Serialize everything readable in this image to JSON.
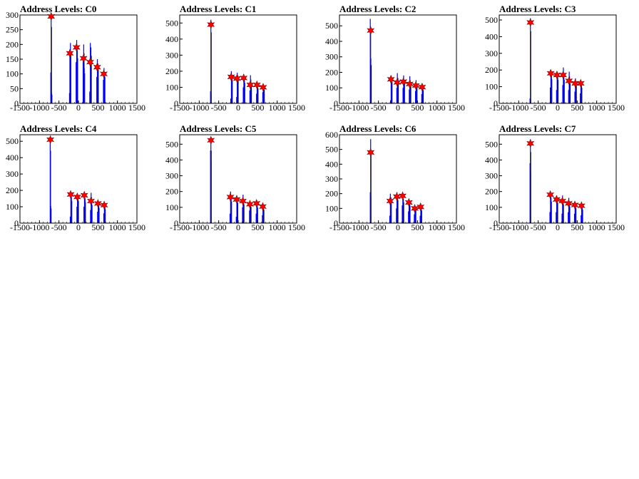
{
  "chart_data": [
    {
      "type": "bar",
      "title": "Address Levels: C0",
      "xlim": [
        -1500,
        1500
      ],
      "ylim": [
        0,
        300
      ],
      "xticks": [
        -1500,
        -1000,
        -500,
        0,
        500,
        1000,
        1500
      ],
      "yticks": [
        0,
        50,
        100,
        150,
        200,
        250,
        300
      ],
      "peaks": [
        {
          "x": -700,
          "y": 295
        },
        {
          "x": -220,
          "y": 170
        },
        {
          "x": -50,
          "y": 190
        },
        {
          "x": 130,
          "y": 153
        },
        {
          "x": 300,
          "y": 140
        },
        {
          "x": 480,
          "y": 123
        },
        {
          "x": 650,
          "y": 100
        }
      ],
      "spikes": [
        {
          "x": -710,
          "y": 105
        },
        {
          "x": -700,
          "y": 305
        },
        {
          "x": -690,
          "y": 35
        },
        {
          "x": -230,
          "y": 35
        },
        {
          "x": -220,
          "y": 165
        },
        {
          "x": -205,
          "y": 205
        },
        {
          "x": -60,
          "y": 140
        },
        {
          "x": -45,
          "y": 215
        },
        {
          "x": -30,
          "y": 180
        },
        {
          "x": 120,
          "y": 145
        },
        {
          "x": 135,
          "y": 200
        },
        {
          "x": 150,
          "y": 120
        },
        {
          "x": 290,
          "y": 40
        },
        {
          "x": 305,
          "y": 205
        },
        {
          "x": 320,
          "y": 190
        },
        {
          "x": 470,
          "y": 90
        },
        {
          "x": 485,
          "y": 150
        },
        {
          "x": 500,
          "y": 135
        },
        {
          "x": 640,
          "y": 80
        },
        {
          "x": 655,
          "y": 120
        },
        {
          "x": 670,
          "y": 105
        }
      ]
    },
    {
      "type": "bar",
      "title": "Address Levels: C1",
      "xlim": [
        -1500,
        1500
      ],
      "ylim": [
        0,
        550
      ],
      "xticks": [
        -1500,
        -1000,
        -500,
        0,
        500,
        1000,
        1500
      ],
      "yticks": [
        0,
        100,
        200,
        300,
        400,
        500
      ],
      "peaks": [
        {
          "x": -700,
          "y": 490
        },
        {
          "x": -180,
          "y": 165
        },
        {
          "x": -30,
          "y": 155
        },
        {
          "x": 140,
          "y": 158
        },
        {
          "x": 310,
          "y": 115
        },
        {
          "x": 480,
          "y": 115
        },
        {
          "x": 640,
          "y": 100
        }
      ],
      "spikes": [
        {
          "x": -710,
          "y": 75
        },
        {
          "x": -700,
          "y": 520
        },
        {
          "x": -190,
          "y": 30
        },
        {
          "x": -175,
          "y": 200
        },
        {
          "x": -160,
          "y": 170
        },
        {
          "x": -40,
          "y": 40
        },
        {
          "x": -25,
          "y": 190
        },
        {
          "x": -10,
          "y": 175
        },
        {
          "x": 130,
          "y": 100
        },
        {
          "x": 145,
          "y": 180
        },
        {
          "x": 160,
          "y": 150
        },
        {
          "x": 300,
          "y": 80
        },
        {
          "x": 315,
          "y": 175
        },
        {
          "x": 330,
          "y": 130
        },
        {
          "x": 470,
          "y": 60
        },
        {
          "x": 485,
          "y": 125
        },
        {
          "x": 500,
          "y": 110
        },
        {
          "x": 630,
          "y": 70
        },
        {
          "x": 645,
          "y": 110
        },
        {
          "x": 660,
          "y": 100
        }
      ]
    },
    {
      "type": "bar",
      "title": "Address Levels: C2",
      "xlim": [
        -1500,
        1500
      ],
      "ylim": [
        0,
        570
      ],
      "xticks": [
        -1500,
        -1000,
        -500,
        0,
        500,
        1000,
        1500
      ],
      "yticks": [
        0,
        100,
        200,
        300,
        400,
        500
      ],
      "peaks": [
        {
          "x": -700,
          "y": 470
        },
        {
          "x": -180,
          "y": 155
        },
        {
          "x": -20,
          "y": 135
        },
        {
          "x": 140,
          "y": 140
        },
        {
          "x": 300,
          "y": 125
        },
        {
          "x": 460,
          "y": 115
        },
        {
          "x": 620,
          "y": 105
        }
      ],
      "spikes": [
        {
          "x": -710,
          "y": 545
        },
        {
          "x": -695,
          "y": 290
        },
        {
          "x": -190,
          "y": 20
        },
        {
          "x": -175,
          "y": 180
        },
        {
          "x": -160,
          "y": 165
        },
        {
          "x": -30,
          "y": 100
        },
        {
          "x": -15,
          "y": 195
        },
        {
          "x": 0,
          "y": 160
        },
        {
          "x": 130,
          "y": 100
        },
        {
          "x": 145,
          "y": 180
        },
        {
          "x": 160,
          "y": 150
        },
        {
          "x": 290,
          "y": 90
        },
        {
          "x": 305,
          "y": 175
        },
        {
          "x": 320,
          "y": 130
        },
        {
          "x": 450,
          "y": 80
        },
        {
          "x": 465,
          "y": 150
        },
        {
          "x": 480,
          "y": 120
        },
        {
          "x": 610,
          "y": 60
        },
        {
          "x": 625,
          "y": 120
        },
        {
          "x": 640,
          "y": 100
        }
      ]
    },
    {
      "type": "bar",
      "title": "Address Levels: C3",
      "xlim": [
        -1500,
        1500
      ],
      "ylim": [
        0,
        530
      ],
      "xticks": [
        -1500,
        -1000,
        -500,
        0,
        500,
        1000,
        1500
      ],
      "yticks": [
        0,
        100,
        200,
        300,
        400,
        500
      ],
      "peaks": [
        {
          "x": -700,
          "y": 485
        },
        {
          "x": -180,
          "y": 180
        },
        {
          "x": -20,
          "y": 170
        },
        {
          "x": 140,
          "y": 170
        },
        {
          "x": 290,
          "y": 135
        },
        {
          "x": 450,
          "y": 120
        },
        {
          "x": 590,
          "y": 120
        }
      ],
      "spikes": [
        {
          "x": -710,
          "y": 30
        },
        {
          "x": -700,
          "y": 510
        },
        {
          "x": -190,
          "y": 95
        },
        {
          "x": -175,
          "y": 200
        },
        {
          "x": -160,
          "y": 170
        },
        {
          "x": -30,
          "y": 80
        },
        {
          "x": -15,
          "y": 190
        },
        {
          "x": 0,
          "y": 165
        },
        {
          "x": 130,
          "y": 110
        },
        {
          "x": 145,
          "y": 215
        },
        {
          "x": 160,
          "y": 165
        },
        {
          "x": 280,
          "y": 80
        },
        {
          "x": 295,
          "y": 190
        },
        {
          "x": 310,
          "y": 140
        },
        {
          "x": 440,
          "y": 70
        },
        {
          "x": 455,
          "y": 150
        },
        {
          "x": 470,
          "y": 125
        },
        {
          "x": 580,
          "y": 60
        },
        {
          "x": 595,
          "y": 130
        },
        {
          "x": 610,
          "y": 110
        }
      ]
    },
    {
      "type": "bar",
      "title": "Address Levels: C4",
      "xlim": [
        -1500,
        1500
      ],
      "ylim": [
        0,
        540
      ],
      "xticks": [
        -1500,
        -1000,
        -500,
        0,
        500,
        1000,
        1500
      ],
      "yticks": [
        0,
        100,
        200,
        300,
        400,
        500
      ],
      "peaks": [
        {
          "x": -720,
          "y": 510
        },
        {
          "x": -200,
          "y": 175
        },
        {
          "x": -30,
          "y": 160
        },
        {
          "x": 150,
          "y": 170
        },
        {
          "x": 320,
          "y": 135
        },
        {
          "x": 500,
          "y": 120
        },
        {
          "x": 660,
          "y": 110
        }
      ],
      "spikes": [
        {
          "x": -725,
          "y": 520
        },
        {
          "x": -710,
          "y": 105
        },
        {
          "x": -210,
          "y": 40
        },
        {
          "x": -195,
          "y": 180
        },
        {
          "x": -180,
          "y": 160
        },
        {
          "x": -40,
          "y": 100
        },
        {
          "x": -25,
          "y": 175
        },
        {
          "x": -10,
          "y": 160
        },
        {
          "x": 140,
          "y": 100
        },
        {
          "x": 155,
          "y": 180
        },
        {
          "x": 170,
          "y": 150
        },
        {
          "x": 310,
          "y": 80
        },
        {
          "x": 325,
          "y": 185
        },
        {
          "x": 340,
          "y": 130
        },
        {
          "x": 490,
          "y": 70
        },
        {
          "x": 505,
          "y": 125
        },
        {
          "x": 520,
          "y": 110
        },
        {
          "x": 650,
          "y": 60
        },
        {
          "x": 665,
          "y": 115
        },
        {
          "x": 680,
          "y": 100
        }
      ]
    },
    {
      "type": "bar",
      "title": "Address Levels: C5",
      "xlim": [
        -1500,
        1500
      ],
      "ylim": [
        0,
        560
      ],
      "xticks": [
        -1500,
        -1000,
        -500,
        0,
        500,
        1000,
        1500
      ],
      "yticks": [
        0,
        100,
        200,
        300,
        400,
        500
      ],
      "peaks": [
        {
          "x": -700,
          "y": 525
        },
        {
          "x": -200,
          "y": 165
        },
        {
          "x": -40,
          "y": 150
        },
        {
          "x": 120,
          "y": 140
        },
        {
          "x": 300,
          "y": 120
        },
        {
          "x": 470,
          "y": 125
        },
        {
          "x": 630,
          "y": 105
        }
      ],
      "spikes": [
        {
          "x": -710,
          "y": 460
        },
        {
          "x": -700,
          "y": 540
        },
        {
          "x": -210,
          "y": 60
        },
        {
          "x": -195,
          "y": 200
        },
        {
          "x": -180,
          "y": 160
        },
        {
          "x": -50,
          "y": 40
        },
        {
          "x": -35,
          "y": 175
        },
        {
          "x": -20,
          "y": 150
        },
        {
          "x": 110,
          "y": 100
        },
        {
          "x": 125,
          "y": 180
        },
        {
          "x": 140,
          "y": 140
        },
        {
          "x": 290,
          "y": 80
        },
        {
          "x": 305,
          "y": 140
        },
        {
          "x": 320,
          "y": 120
        },
        {
          "x": 460,
          "y": 60
        },
        {
          "x": 475,
          "y": 130
        },
        {
          "x": 490,
          "y": 115
        },
        {
          "x": 620,
          "y": 50
        },
        {
          "x": 635,
          "y": 110
        },
        {
          "x": 650,
          "y": 100
        }
      ]
    },
    {
      "type": "bar",
      "title": "Address Levels: C6",
      "xlim": [
        -1500,
        1500
      ],
      "ylim": [
        0,
        600
      ],
      "xticks": [
        -1500,
        -1000,
        -500,
        0,
        500,
        1000,
        1500
      ],
      "yticks": [
        0,
        100,
        200,
        300,
        400,
        500,
        600
      ],
      "peaks": [
        {
          "x": -700,
          "y": 480
        },
        {
          "x": -200,
          "y": 150
        },
        {
          "x": -30,
          "y": 180
        },
        {
          "x": 120,
          "y": 185
        },
        {
          "x": 280,
          "y": 140
        },
        {
          "x": 430,
          "y": 100
        },
        {
          "x": 580,
          "y": 110
        }
      ],
      "spikes": [
        {
          "x": -710,
          "y": 210
        },
        {
          "x": -700,
          "y": 570
        },
        {
          "x": -210,
          "y": 50
        },
        {
          "x": -195,
          "y": 200
        },
        {
          "x": -180,
          "y": 175
        },
        {
          "x": -40,
          "y": 100
        },
        {
          "x": -25,
          "y": 210
        },
        {
          "x": -10,
          "y": 185
        },
        {
          "x": 110,
          "y": 120
        },
        {
          "x": 125,
          "y": 195
        },
        {
          "x": 140,
          "y": 165
        },
        {
          "x": 270,
          "y": 80
        },
        {
          "x": 285,
          "y": 165
        },
        {
          "x": 300,
          "y": 140
        },
        {
          "x": 420,
          "y": 60
        },
        {
          "x": 435,
          "y": 120
        },
        {
          "x": 450,
          "y": 105
        },
        {
          "x": 570,
          "y": 50
        },
        {
          "x": 585,
          "y": 120
        },
        {
          "x": 600,
          "y": 100
        }
      ]
    },
    {
      "type": "bar",
      "title": "Address Levels: C7",
      "xlim": [
        -1500,
        1500
      ],
      "ylim": [
        0,
        560
      ],
      "xticks": [
        -1500,
        -1000,
        -500,
        0,
        500,
        1000,
        1500
      ],
      "yticks": [
        0,
        100,
        200,
        300,
        400,
        500
      ],
      "peaks": [
        {
          "x": -700,
          "y": 505
        },
        {
          "x": -190,
          "y": 180
        },
        {
          "x": -30,
          "y": 150
        },
        {
          "x": 120,
          "y": 140
        },
        {
          "x": 280,
          "y": 125
        },
        {
          "x": 440,
          "y": 115
        },
        {
          "x": 610,
          "y": 110
        }
      ],
      "spikes": [
        {
          "x": -710,
          "y": 380
        },
        {
          "x": -700,
          "y": 530
        },
        {
          "x": -200,
          "y": 70
        },
        {
          "x": -185,
          "y": 195
        },
        {
          "x": -170,
          "y": 160
        },
        {
          "x": -40,
          "y": 70
        },
        {
          "x": -25,
          "y": 175
        },
        {
          "x": -10,
          "y": 150
        },
        {
          "x": 110,
          "y": 60
        },
        {
          "x": 125,
          "y": 175
        },
        {
          "x": 140,
          "y": 140
        },
        {
          "x": 270,
          "y": 70
        },
        {
          "x": 285,
          "y": 160
        },
        {
          "x": 300,
          "y": 125
        },
        {
          "x": 430,
          "y": 60
        },
        {
          "x": 445,
          "y": 130
        },
        {
          "x": 460,
          "y": 110
        },
        {
          "x": 600,
          "y": 50
        },
        {
          "x": 615,
          "y": 120
        },
        {
          "x": 630,
          "y": 100
        }
      ]
    }
  ],
  "colors": {
    "histogram": "#0000ff",
    "marker_fill": "#ff0000",
    "axis": "#000000"
  }
}
